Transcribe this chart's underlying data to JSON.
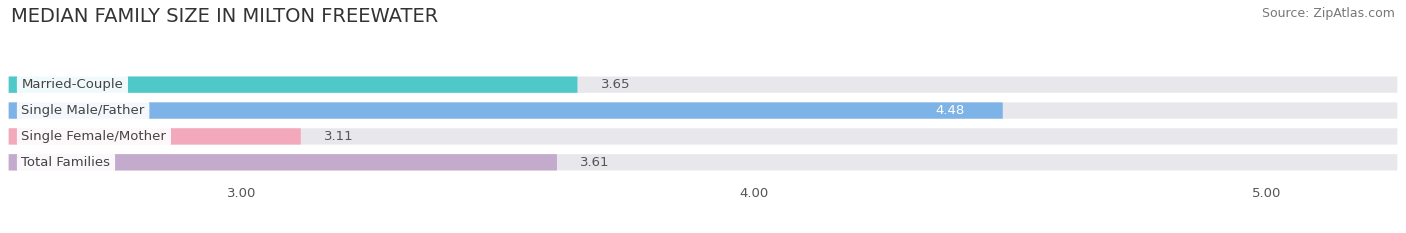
{
  "title": "MEDIAN FAMILY SIZE IN MILTON FREEWATER",
  "source": "Source: ZipAtlas.com",
  "categories": [
    "Married-Couple",
    "Single Male/Father",
    "Single Female/Mother",
    "Total Families"
  ],
  "values": [
    3.65,
    4.48,
    3.11,
    3.61
  ],
  "bar_colors": [
    "#4EC8C8",
    "#7EB3E8",
    "#F4A8BC",
    "#C4AACC"
  ],
  "value_colors": [
    "#555555",
    "#ffffff",
    "#555555",
    "#555555"
  ],
  "xlim_min": 2.55,
  "xlim_max": 5.25,
  "xticks": [
    3.0,
    4.0,
    5.0
  ],
  "xtick_labels": [
    "3.00",
    "4.00",
    "5.00"
  ],
  "bar_height": 0.62,
  "background_color": "#ffffff",
  "track_color": "#e8e8ec",
  "title_fontsize": 14,
  "label_fontsize": 9.5,
  "value_fontsize": 9.5,
  "source_fontsize": 9
}
